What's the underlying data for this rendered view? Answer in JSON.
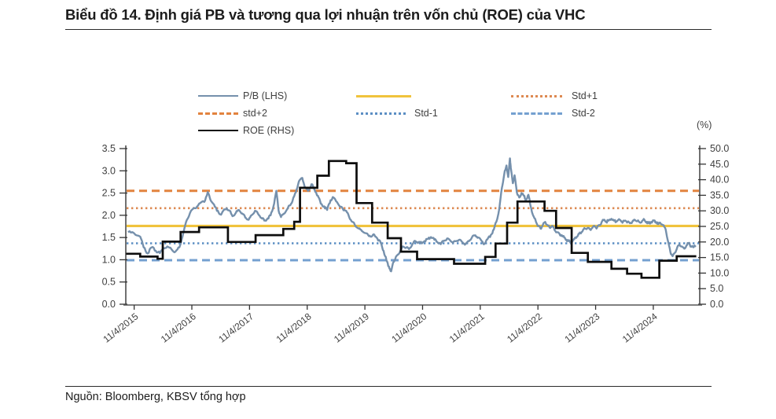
{
  "title": "Biểu đồ 14. Định giá PB và tương qua lợi nhuận trên vốn chủ (ROE) của VHC",
  "source": "Nguồn: Bloomberg, KBSV tổng hợp",
  "right_axis_unit": "(%)",
  "colors": {
    "pb_line": "#7590ac",
    "roe_line": "#0d0d0d",
    "average": "#f0c33c",
    "std_plus1": "#dd8a52",
    "std_plus2": "#e2833f",
    "std_minus1": "#5b8ec4",
    "std_minus2": "#74a0d0",
    "axis": "#333333",
    "axis_bottom": "#808080",
    "tick_text": "#3f3f3f"
  },
  "legend": {
    "items": [
      {
        "label": "P/B (LHS)",
        "style": "solid",
        "color": "#7590ac"
      },
      {
        "label": "",
        "style": "solid",
        "color": "#f0c33c"
      },
      {
        "label": "Std+1",
        "style": "dotted",
        "color": "#dd8a52"
      },
      {
        "label": "std+2",
        "style": "dashed",
        "color": "#e2833f"
      },
      {
        "label": "Std-1",
        "style": "dotted",
        "color": "#5b8ec4"
      },
      {
        "label": "Std-2",
        "style": "dashed",
        "color": "#74a0d0"
      },
      {
        "label": "ROE (RHS)",
        "style": "solid",
        "color": "#0d0d0d"
      }
    ]
  },
  "chart_data": {
    "type": "line",
    "title": "Định giá PB và tương quan ROE của VHC",
    "x_range": [
      2015.13,
      2025.08
    ],
    "left_axis": {
      "label": "P/B",
      "range": [
        0,
        3.5
      ],
      "ticks": [
        0,
        0.5,
        1,
        1.5,
        2,
        2.5,
        3,
        3.5
      ]
    },
    "right_axis": {
      "label": "(%)",
      "range": [
        0,
        50
      ],
      "ticks": [
        0,
        5,
        10,
        15,
        20,
        25,
        30,
        35,
        40,
        45,
        50
      ]
    },
    "x_ticks": [
      {
        "label": "11/4/2015",
        "year": 2015.275
      },
      {
        "label": "11/4/2016",
        "year": 2016.275
      },
      {
        "label": "11/4/2017",
        "year": 2017.275
      },
      {
        "label": "11/4/2018",
        "year": 2018.275
      },
      {
        "label": "11/4/2019",
        "year": 2019.275
      },
      {
        "label": "11/4/2020",
        "year": 2020.275
      },
      {
        "label": "11/4/2021",
        "year": 2021.275
      },
      {
        "label": "11/4/2022",
        "year": 2022.275
      },
      {
        "label": "11/4/2023",
        "year": 2023.275
      },
      {
        "label": "11/4/2024",
        "year": 2024.275
      }
    ],
    "reference_lines": [
      {
        "name": "std+2",
        "axis": "left",
        "value": 2.55,
        "style": "dashed",
        "color": "#e2833f"
      },
      {
        "name": "Std+1",
        "axis": "left",
        "value": 2.16,
        "style": "dotted",
        "color": "#dd8a52"
      },
      {
        "name": "Average",
        "axis": "left",
        "value": 1.76,
        "style": "solid",
        "color": "#f0c33c"
      },
      {
        "name": "Std-1",
        "axis": "left",
        "value": 1.37,
        "style": "dotted",
        "color": "#5b8ec4"
      },
      {
        "name": "Std-2",
        "axis": "left",
        "value": 0.99,
        "style": "dashed",
        "color": "#74a0d0"
      }
    ],
    "series": [
      {
        "name": "P/B (LHS)",
        "axis": "left",
        "type": "line",
        "color": "#7590ac",
        "points": [
          [
            2015.17,
            1.62
          ],
          [
            2015.27,
            1.6
          ],
          [
            2015.38,
            1.52
          ],
          [
            2015.44,
            1.28
          ],
          [
            2015.51,
            1.14
          ],
          [
            2015.58,
            1.28
          ],
          [
            2015.65,
            1.2
          ],
          [
            2015.72,
            1.15
          ],
          [
            2015.78,
            1.27
          ],
          [
            2015.85,
            1.3
          ],
          [
            2015.92,
            1.24
          ],
          [
            2015.99,
            1.18
          ],
          [
            2016.06,
            1.28
          ],
          [
            2016.13,
            1.62
          ],
          [
            2016.19,
            1.9
          ],
          [
            2016.26,
            2.1
          ],
          [
            2016.33,
            2.16
          ],
          [
            2016.4,
            2.26
          ],
          [
            2016.49,
            2.3
          ],
          [
            2016.55,
            2.52
          ],
          [
            2016.6,
            2.34
          ],
          [
            2016.66,
            2.24
          ],
          [
            2016.71,
            2.1
          ],
          [
            2016.77,
            2.02
          ],
          [
            2016.82,
            2.1
          ],
          [
            2016.88,
            2.16
          ],
          [
            2016.93,
            2.1
          ],
          [
            2016.98,
            1.98
          ],
          [
            2017.04,
            2.06
          ],
          [
            2017.09,
            2.12
          ],
          [
            2017.15,
            2.04
          ],
          [
            2017.2,
            1.95
          ],
          [
            2017.26,
            1.9
          ],
          [
            2017.31,
            2.0
          ],
          [
            2017.37,
            2.1
          ],
          [
            2017.42,
            2.04
          ],
          [
            2017.48,
            1.94
          ],
          [
            2017.53,
            1.88
          ],
          [
            2017.59,
            1.93
          ],
          [
            2017.64,
            2.0
          ],
          [
            2017.69,
            2.2
          ],
          [
            2017.74,
            2.55
          ],
          [
            2017.78,
            2.1
          ],
          [
            2017.82,
            1.96
          ],
          [
            2017.86,
            2.02
          ],
          [
            2017.91,
            2.1
          ],
          [
            2017.97,
            2.22
          ],
          [
            2018.02,
            2.32
          ],
          [
            2018.08,
            2.52
          ],
          [
            2018.13,
            2.76
          ],
          [
            2018.19,
            2.84
          ],
          [
            2018.24,
            2.62
          ],
          [
            2018.29,
            2.55
          ],
          [
            2018.35,
            2.7
          ],
          [
            2018.4,
            2.58
          ],
          [
            2018.46,
            2.44
          ],
          [
            2018.51,
            2.26
          ],
          [
            2018.57,
            2.2
          ],
          [
            2018.62,
            2.12
          ],
          [
            2018.68,
            2.34
          ],
          [
            2018.73,
            2.4
          ],
          [
            2018.79,
            2.3
          ],
          [
            2018.84,
            2.2
          ],
          [
            2018.89,
            2.15
          ],
          [
            2018.95,
            2.1
          ],
          [
            2019.0,
            1.97
          ],
          [
            2019.06,
            1.85
          ],
          [
            2019.11,
            1.76
          ],
          [
            2019.17,
            1.7
          ],
          [
            2019.22,
            1.65
          ],
          [
            2019.28,
            1.6
          ],
          [
            2019.33,
            1.56
          ],
          [
            2019.39,
            1.52
          ],
          [
            2019.44,
            1.56
          ],
          [
            2019.49,
            1.48
          ],
          [
            2019.55,
            1.38
          ],
          [
            2019.6,
            1.2
          ],
          [
            2019.65,
            0.98
          ],
          [
            2019.69,
            0.85
          ],
          [
            2019.73,
            0.74
          ],
          [
            2019.77,
            0.95
          ],
          [
            2019.81,
            1.06
          ],
          [
            2019.85,
            1.12
          ],
          [
            2019.89,
            1.2
          ],
          [
            2019.93,
            1.3
          ],
          [
            2019.99,
            1.27
          ],
          [
            2020.04,
            1.24
          ],
          [
            2020.1,
            1.35
          ],
          [
            2020.15,
            1.42
          ],
          [
            2020.21,
            1.4
          ],
          [
            2020.26,
            1.37
          ],
          [
            2020.31,
            1.42
          ],
          [
            2020.37,
            1.47
          ],
          [
            2020.42,
            1.51
          ],
          [
            2020.48,
            1.45
          ],
          [
            2020.53,
            1.4
          ],
          [
            2020.59,
            1.35
          ],
          [
            2020.64,
            1.42
          ],
          [
            2020.7,
            1.48
          ],
          [
            2020.75,
            1.44
          ],
          [
            2020.8,
            1.38
          ],
          [
            2020.86,
            1.42
          ],
          [
            2020.91,
            1.45
          ],
          [
            2020.97,
            1.39
          ],
          [
            2021.02,
            1.35
          ],
          [
            2021.08,
            1.42
          ],
          [
            2021.13,
            1.5
          ],
          [
            2021.19,
            1.55
          ],
          [
            2021.24,
            1.5
          ],
          [
            2021.3,
            1.42
          ],
          [
            2021.35,
            1.36
          ],
          [
            2021.4,
            1.46
          ],
          [
            2021.46,
            1.56
          ],
          [
            2021.51,
            1.68
          ],
          [
            2021.57,
            1.92
          ],
          [
            2021.61,
            2.2
          ],
          [
            2021.65,
            2.62
          ],
          [
            2021.69,
            2.92
          ],
          [
            2021.73,
            3.12
          ],
          [
            2021.76,
            2.86
          ],
          [
            2021.79,
            3.28
          ],
          [
            2021.81,
            3.02
          ],
          [
            2021.84,
            2.72
          ],
          [
            2021.87,
            2.9
          ],
          [
            2021.9,
            2.62
          ],
          [
            2021.92,
            2.46
          ],
          [
            2021.95,
            2.4
          ],
          [
            2021.99,
            2.5
          ],
          [
            2022.03,
            2.44
          ],
          [
            2022.07,
            2.35
          ],
          [
            2022.11,
            2.46
          ],
          [
            2022.15,
            2.2
          ],
          [
            2022.19,
            2.0
          ],
          [
            2022.24,
            1.86
          ],
          [
            2022.28,
            1.76
          ],
          [
            2022.32,
            1.7
          ],
          [
            2022.36,
            1.78
          ],
          [
            2022.4,
            1.85
          ],
          [
            2022.44,
            1.78
          ],
          [
            2022.48,
            1.72
          ],
          [
            2022.52,
            1.76
          ],
          [
            2022.56,
            1.68
          ],
          [
            2022.6,
            1.62
          ],
          [
            2022.65,
            1.58
          ],
          [
            2022.69,
            1.55
          ],
          [
            2022.73,
            1.5
          ],
          [
            2022.77,
            1.45
          ],
          [
            2022.81,
            1.42
          ],
          [
            2022.85,
            1.38
          ],
          [
            2022.89,
            1.44
          ],
          [
            2022.93,
            1.5
          ],
          [
            2022.97,
            1.55
          ],
          [
            2023.01,
            1.6
          ],
          [
            2023.05,
            1.65
          ],
          [
            2023.09,
            1.7
          ],
          [
            2023.14,
            1.72
          ],
          [
            2023.18,
            1.68
          ],
          [
            2023.22,
            1.72
          ],
          [
            2023.26,
            1.75
          ],
          [
            2023.3,
            1.72
          ],
          [
            2023.34,
            1.78
          ],
          [
            2023.38,
            1.85
          ],
          [
            2023.42,
            1.9
          ],
          [
            2023.46,
            1.85
          ],
          [
            2023.5,
            1.88
          ],
          [
            2023.55,
            1.92
          ],
          [
            2023.59,
            1.88
          ],
          [
            2023.63,
            1.85
          ],
          [
            2023.67,
            1.9
          ],
          [
            2023.71,
            1.88
          ],
          [
            2023.75,
            1.85
          ],
          [
            2023.79,
            1.88
          ],
          [
            2023.83,
            1.85
          ],
          [
            2023.87,
            1.82
          ],
          [
            2023.91,
            1.85
          ],
          [
            2023.95,
            1.9
          ],
          [
            2024.0,
            1.87
          ],
          [
            2024.04,
            1.84
          ],
          [
            2024.08,
            1.87
          ],
          [
            2024.12,
            1.9
          ],
          [
            2024.16,
            1.85
          ],
          [
            2024.2,
            1.82
          ],
          [
            2024.24,
            1.85
          ],
          [
            2024.28,
            1.88
          ],
          [
            2024.32,
            1.85
          ],
          [
            2024.36,
            1.8
          ],
          [
            2024.4,
            1.82
          ],
          [
            2024.45,
            1.78
          ],
          [
            2024.49,
            1.68
          ],
          [
            2024.53,
            1.42
          ],
          [
            2024.57,
            1.18
          ],
          [
            2024.61,
            1.08
          ],
          [
            2024.65,
            1.16
          ],
          [
            2024.69,
            1.28
          ],
          [
            2024.73,
            1.34
          ],
          [
            2024.77,
            1.3
          ],
          [
            2024.81,
            1.25
          ],
          [
            2024.85,
            1.32
          ],
          [
            2024.89,
            1.38
          ],
          [
            2024.93,
            1.3
          ],
          [
            2024.97,
            1.28
          ],
          [
            2025.01,
            1.32
          ]
        ]
      },
      {
        "name": "ROE (RHS)",
        "axis": "right",
        "type": "step",
        "color": "#0d0d0d",
        "points": [
          [
            2015.13,
            16.2
          ],
          [
            2015.38,
            15.3
          ],
          [
            2015.68,
            14.6
          ],
          [
            2015.77,
            20.1
          ],
          [
            2016.08,
            23.2
          ],
          [
            2016.4,
            24.7
          ],
          [
            2016.9,
            20.0
          ],
          [
            2017.38,
            22.2
          ],
          [
            2017.86,
            24.2
          ],
          [
            2018.05,
            26.5
          ],
          [
            2018.15,
            37.4
          ],
          [
            2018.45,
            41.3
          ],
          [
            2018.65,
            46.0
          ],
          [
            2018.95,
            45.3
          ],
          [
            2019.13,
            32.5
          ],
          [
            2019.4,
            26.2
          ],
          [
            2019.67,
            21.2
          ],
          [
            2019.9,
            16.9
          ],
          [
            2020.18,
            14.5
          ],
          [
            2020.82,
            13.0
          ],
          [
            2021.36,
            15.2
          ],
          [
            2021.54,
            19.5
          ],
          [
            2021.74,
            26.2
          ],
          [
            2021.92,
            33.0
          ],
          [
            2022.39,
            30.0
          ],
          [
            2022.59,
            24.5
          ],
          [
            2022.86,
            16.5
          ],
          [
            2023.14,
            13.6
          ],
          [
            2023.55,
            11.4
          ],
          [
            2023.82,
            9.8
          ],
          [
            2024.07,
            8.5
          ],
          [
            2024.38,
            14.0
          ],
          [
            2024.68,
            15.4
          ],
          [
            2025.02,
            15.4
          ]
        ]
      }
    ]
  }
}
